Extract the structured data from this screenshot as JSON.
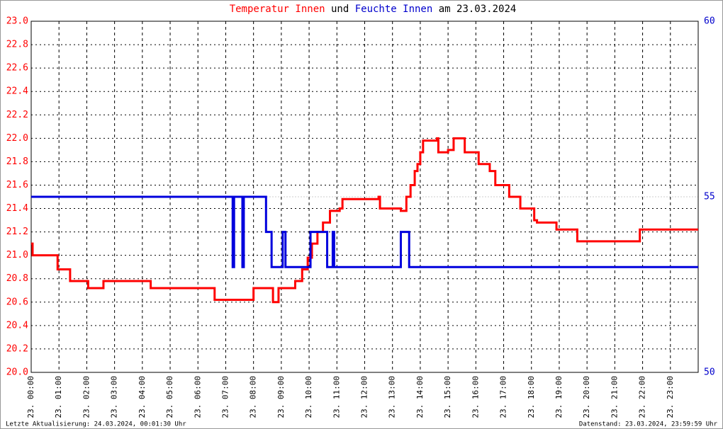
{
  "chart_data": {
    "type": "line",
    "title_parts": [
      {
        "text": "Temperatur Innen",
        "color": "#ff0000"
      },
      {
        "text": "und",
        "color": "#000000"
      },
      {
        "text": "Feuchte Innen",
        "color": "#0000cc"
      },
      {
        "text": "am 23.03.2024",
        "color": "#000000"
      }
    ],
    "footer_left": "Letzte Aktualisierung: 24.03.2024, 00:01:30 Uhr",
    "footer_right": "Datenstand: 23.03.2024, 23:59:59 Uhr",
    "step": "post",
    "grid": true,
    "xlim": [
      0,
      24
    ],
    "xticks": [
      {
        "value": 0,
        "label": "23. 00:00"
      },
      {
        "value": 1,
        "label": "23. 01:00"
      },
      {
        "value": 2,
        "label": "23. 02:00"
      },
      {
        "value": 3,
        "label": "23. 03:00"
      },
      {
        "value": 4,
        "label": "23. 04:00"
      },
      {
        "value": 5,
        "label": "23. 05:00"
      },
      {
        "value": 6,
        "label": "23. 06:00"
      },
      {
        "value": 7,
        "label": "23. 07:00"
      },
      {
        "value": 8,
        "label": "23. 08:00"
      },
      {
        "value": 9,
        "label": "23. 09:00"
      },
      {
        "value": 10,
        "label": "23. 10:00"
      },
      {
        "value": 11,
        "label": "23. 11:00"
      },
      {
        "value": 12,
        "label": "23. 12:00"
      },
      {
        "value": 13,
        "label": "23. 13:00"
      },
      {
        "value": 14,
        "label": "23. 14:00"
      },
      {
        "value": 15,
        "label": "23. 15:00"
      },
      {
        "value": 16,
        "label": "23. 16:00"
      },
      {
        "value": 17,
        "label": "23. 17:00"
      },
      {
        "value": 18,
        "label": "23. 18:00"
      },
      {
        "value": 19,
        "label": "23. 19:00"
      },
      {
        "value": 20,
        "label": "23. 20:00"
      },
      {
        "value": 21,
        "label": "23. 21:00"
      },
      {
        "value": 22,
        "label": "23. 22:00"
      },
      {
        "value": 23,
        "label": "23. 23:00"
      }
    ],
    "ylim": [
      20,
      23
    ],
    "yticks": [
      {
        "value": 20,
        "label": "20.0"
      },
      {
        "value": 20.2,
        "label": "20.2"
      },
      {
        "value": 20.4,
        "label": "20.4"
      },
      {
        "value": 20.6,
        "label": "20.6"
      },
      {
        "value": 20.8,
        "label": "20.8"
      },
      {
        "value": 21,
        "label": "21.0"
      },
      {
        "value": 21.2,
        "label": "21.2"
      },
      {
        "value": 21.4,
        "label": "21.4"
      },
      {
        "value": 21.6,
        "label": "21.6"
      },
      {
        "value": 21.8,
        "label": "21.8"
      },
      {
        "value": 22,
        "label": "22.0"
      },
      {
        "value": 22.2,
        "label": "22.2"
      },
      {
        "value": 22.4,
        "label": "22.4"
      },
      {
        "value": 22.6,
        "label": "22.6"
      },
      {
        "value": 22.8,
        "label": "22.8"
      },
      {
        "value": 23,
        "label": "23.0"
      }
    ],
    "y2lim": [
      50,
      60
    ],
    "y2ticks": [
      50,
      55,
      60
    ],
    "series": [
      {
        "name": "Temperatur Innen",
        "color": "#ff0000",
        "x": [
          0,
          0.05,
          0.9,
          0.95,
          1.3,
          1.4,
          2.0,
          2.05,
          2.6,
          4.2,
          4.3,
          6.5,
          6.6,
          8.0,
          8.6,
          8.7,
          8.9,
          9.4,
          9.5,
          9.75,
          9.95,
          10.1,
          10.3,
          10.5,
          10.75,
          11.1,
          11.2,
          12.5,
          12.55,
          13.3,
          13.5,
          13.65,
          13.8,
          13.9,
          14.0,
          14.1,
          14.6,
          14.65,
          15.0,
          15.2,
          15.6,
          16.0,
          16.1,
          16.5,
          16.7,
          17.1,
          17.2,
          17.5,
          17.6,
          18.1,
          18.2,
          18.9,
          19.65,
          21.8,
          21.9,
          24
        ],
        "values": [
          21.1,
          21.0,
          21.0,
          20.88,
          20.88,
          20.78,
          20.78,
          20.72,
          20.78,
          20.78,
          20.72,
          20.72,
          20.62,
          20.72,
          20.72,
          20.6,
          20.72,
          20.72,
          20.78,
          20.88,
          20.98,
          21.1,
          21.2,
          21.28,
          21.38,
          21.4,
          21.48,
          21.5,
          21.4,
          21.38,
          21.5,
          21.6,
          21.72,
          21.78,
          21.88,
          21.98,
          22.0,
          21.88,
          21.9,
          22.0,
          21.88,
          21.88,
          21.78,
          21.72,
          21.6,
          21.6,
          21.5,
          21.5,
          21.4,
          21.3,
          21.28,
          21.22,
          21.12,
          21.12,
          21.22,
          21.22
        ]
      },
      {
        "name": "Feuchte Innen",
        "color": "#0000dd",
        "axis": "y2",
        "x": [
          0,
          7.2,
          7.25,
          7.3,
          7.6,
          7.65,
          8.35,
          8.45,
          8.65,
          9.0,
          9.05,
          9.15,
          10.0,
          10.05,
          10.65,
          10.85,
          10.9,
          13.2,
          13.3,
          13.6,
          24
        ],
        "values": [
          55,
          55,
          53,
          55,
          53,
          55,
          55,
          54,
          53,
          53,
          54,
          53,
          53,
          54,
          53,
          54,
          53,
          53,
          54,
          53,
          53
        ]
      }
    ]
  }
}
